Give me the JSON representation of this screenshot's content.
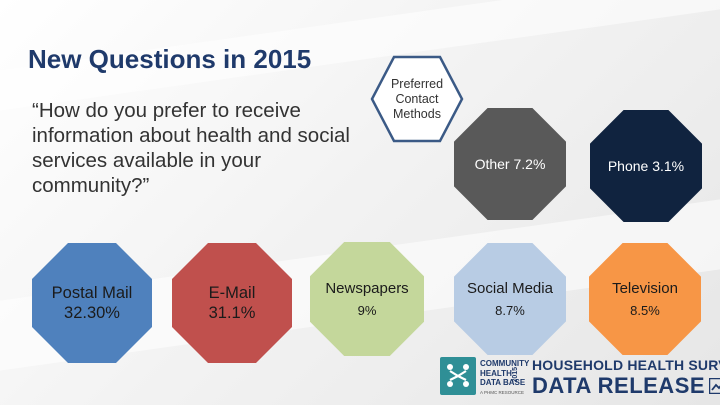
{
  "title": "New Questions in 2015",
  "question": "“How do you prefer to receive information about health and social services available in your community?”",
  "center_label": "Preferred\nContact\nMethods",
  "methods": [
    {
      "label": "Postal Mail",
      "value": "32.30%",
      "color": "#4f81bd",
      "text_color": "#1b1b1b"
    },
    {
      "label": "E-Mail",
      "value": "31.1%",
      "color": "#c0504d",
      "text_color": "#1b1b1b"
    },
    {
      "label": "Newspapers",
      "value": "9%",
      "color": "#c4d79b",
      "text_color": "#1b1b1b"
    },
    {
      "label": "Social Media",
      "value": "8.7%",
      "color": "#b8cce4",
      "text_color": "#1b1b1b"
    },
    {
      "label": "Television",
      "value": "8.5%",
      "color": "#f79646",
      "text_color": "#1b1b1b"
    },
    {
      "label": "Other 7.2%",
      "color": "#595959",
      "text_color": "#ffffff"
    },
    {
      "label": "Phone 3.1%",
      "color": "#10233f",
      "text_color": "#ffffff"
    }
  ],
  "logo": {
    "small": "COMMUNITY\nHEALTH\nDATA BASE",
    "sub": "A PHMC RESOURCE",
    "year": "2015",
    "line1": "HOUSEHOLD HEALTH SURVEY",
    "line2": "DATA RELEASE",
    "color": "#1f3a6b",
    "mark_color": "#2f8f96"
  }
}
